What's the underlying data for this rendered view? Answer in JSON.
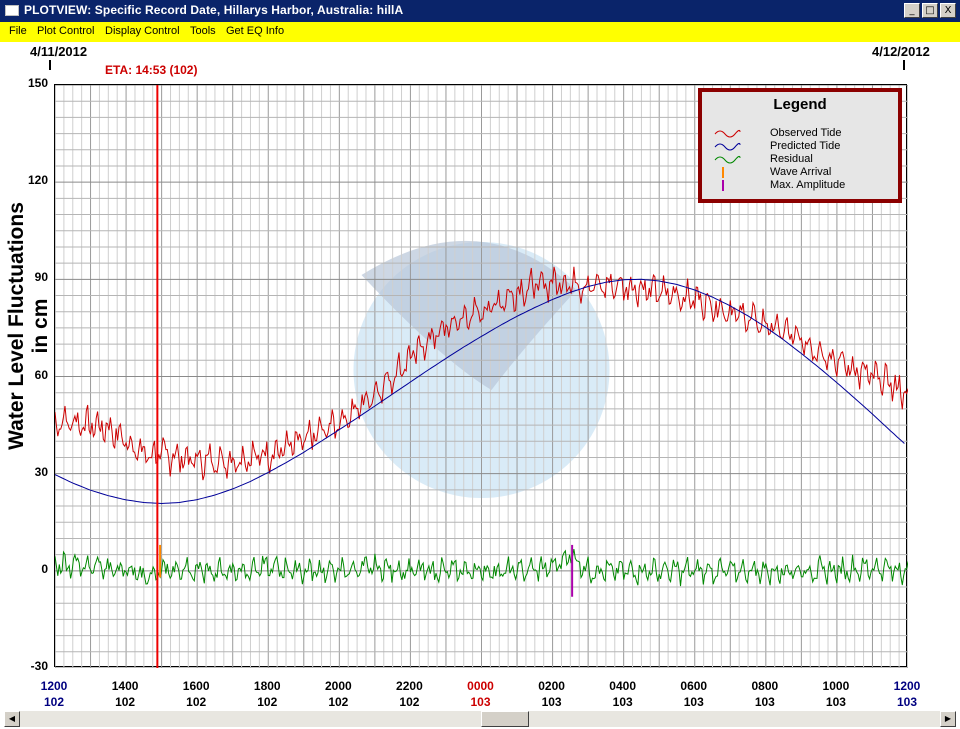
{
  "window": {
    "title": "PLOTVIEW: Specific Record Date, Hillarys Harbor, Australia: hillA"
  },
  "window_buttons": [
    {
      "name": "minimize-button",
      "glyph": "_"
    },
    {
      "name": "maximize-button",
      "glyph": "□"
    },
    {
      "name": "close-button",
      "glyph": "X"
    }
  ],
  "menu": [
    "File",
    "Plot Control",
    "Display Control",
    "Tools",
    "Get EQ Info"
  ],
  "header": {
    "date_start": "4/11/2012",
    "date_end": "4/12/2012",
    "eta": "ETA: 14:53 (102)"
  },
  "legend": {
    "title": "Legend",
    "entries": [
      {
        "label": "Observed Tide",
        "color": "#cc0000",
        "kind": "wave"
      },
      {
        "label": "Predicted Tide",
        "color": "#000099",
        "kind": "wave"
      },
      {
        "label": "Residual",
        "color": "#008800",
        "kind": "wave"
      },
      {
        "label": "Wave Arrival",
        "color": "#ff8800",
        "kind": "bar"
      },
      {
        "label": "Max. Amplitude",
        "color": "#aa00aa",
        "kind": "bar"
      }
    ]
  },
  "chart_data": {
    "type": "line",
    "ylabel": "Water Level Fluctuations in cm",
    "ylim": [
      -30,
      150
    ],
    "yticks": [
      -30,
      0,
      30,
      60,
      90,
      120,
      150
    ],
    "xlim_hours": [
      12,
      36
    ],
    "xticks": [
      {
        "time": "1200",
        "day": "102",
        "color": "#000080"
      },
      {
        "time": "1400",
        "day": "102",
        "color": "#000000"
      },
      {
        "time": "1600",
        "day": "102",
        "color": "#000000"
      },
      {
        "time": "1800",
        "day": "102",
        "color": "#000000"
      },
      {
        "time": "2000",
        "day": "102",
        "color": "#000000"
      },
      {
        "time": "2200",
        "day": "102",
        "color": "#000000"
      },
      {
        "time": "0000",
        "day": "103",
        "color": "#cc0000"
      },
      {
        "time": "0200",
        "day": "103",
        "color": "#000000"
      },
      {
        "time": "0400",
        "day": "103",
        "color": "#000000"
      },
      {
        "time": "0600",
        "day": "103",
        "color": "#000000"
      },
      {
        "time": "0800",
        "day": "103",
        "color": "#000000"
      },
      {
        "time": "1000",
        "day": "103",
        "color": "#000000"
      },
      {
        "time": "1200",
        "day": "103",
        "color": "#000080"
      }
    ],
    "eta_hour": 14.88,
    "wave_arrival_hour": 14.9,
    "max_amplitude_hour": 26.55,
    "series": [
      {
        "name": "Observed Tide",
        "color": "#cc0000",
        "x": [
          12,
          12.5,
          13,
          13.5,
          14,
          14.5,
          15,
          15.5,
          16,
          16.5,
          17,
          17.5,
          18,
          18.5,
          19,
          19.5,
          20,
          20.5,
          21,
          21.5,
          22,
          22.5,
          23,
          23.5,
          24,
          24.5,
          25,
          25.5,
          26,
          26.5,
          27,
          27.5,
          28,
          28.5,
          29,
          29.5,
          30,
          30.5,
          31,
          31.5,
          32,
          32.5,
          33,
          33.5,
          34,
          34.5,
          35,
          35.5,
          36
        ],
        "y": [
          46,
          46,
          45,
          44,
          40,
          36,
          36,
          35,
          34,
          34,
          34,
          35,
          36,
          38,
          40,
          43,
          46,
          50,
          55,
          60,
          66,
          71,
          75,
          78,
          80,
          83,
          86,
          88,
          89,
          89,
          88,
          88,
          88,
          87,
          86,
          85,
          84,
          82,
          80,
          78,
          76,
          74,
          71,
          68,
          65,
          62,
          60,
          58,
          54
        ]
      },
      {
        "name": "Predicted Tide",
        "color": "#000099",
        "x": [
          12,
          12.5,
          13,
          13.5,
          14,
          14.5,
          15,
          15.5,
          16,
          16.5,
          17,
          17.5,
          18,
          18.5,
          19,
          19.5,
          20,
          20.5,
          21,
          21.5,
          22,
          22.5,
          23,
          23.5,
          24,
          24.5,
          25,
          25.5,
          26,
          26.5,
          27,
          27.5,
          28,
          28.5,
          29,
          29.5,
          30,
          30.5,
          31,
          31.5,
          32,
          32.5,
          33,
          33.5,
          34,
          34.5,
          35,
          35.5,
          36
        ],
        "y": [
          29.7,
          27.1,
          24.9,
          23.2,
          21.9,
          21.1,
          20.8,
          21.1,
          22.0,
          23.4,
          25.3,
          27.6,
          30.4,
          33.4,
          36.6,
          40.1,
          43.6,
          47.2,
          50.9,
          54.6,
          58.3,
          62.0,
          65.6,
          69.1,
          72.4,
          75.6,
          78.6,
          81.3,
          83.8,
          86.0,
          87.8,
          89.1,
          89.9,
          90.0,
          89.5,
          88.4,
          86.7,
          84.5,
          81.8,
          78.7,
          75.2,
          71.3,
          67.1,
          62.7,
          58.1,
          53.3,
          48.4,
          43.3,
          38.3
        ]
      },
      {
        "name": "Residual",
        "color": "#008800",
        "x": [
          12,
          13,
          14,
          14.5,
          15,
          16,
          17,
          18,
          19,
          20,
          21,
          22,
          23,
          24,
          25,
          26,
          26.5,
          27,
          28,
          29,
          30,
          31,
          32,
          33,
          34,
          35,
          36
        ],
        "y": [
          2,
          2,
          0,
          -2,
          0,
          0,
          0,
          1,
          0,
          0,
          1,
          0,
          0,
          0,
          0,
          1,
          5,
          0,
          0,
          0,
          0,
          0,
          0,
          0,
          0,
          1,
          0
        ]
      }
    ]
  }
}
